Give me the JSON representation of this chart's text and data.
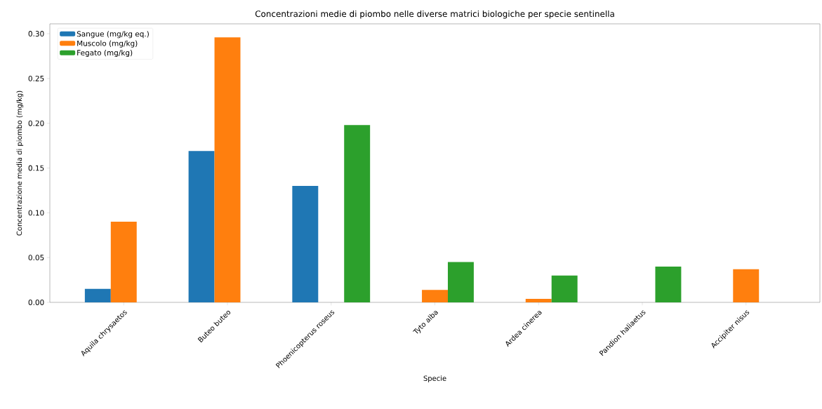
{
  "chart_data": {
    "type": "bar",
    "title": "Concentrazioni medie di piombo nelle diverse matrici biologiche per specie sentinella",
    "xlabel": "Specie",
    "ylabel": "Concentrazione media di piombo (mg/kg)",
    "categories": [
      "Aquila chrysaetos",
      "Buteo buteo",
      "Phoenicopterus roseus",
      "Tyto alba",
      "Ardea cinerea",
      "Pandion haliaetus",
      "Accipiter nisus"
    ],
    "series": [
      {
        "name": "Sangue (mg/kg eq.)",
        "color": "#1f77b4",
        "values": [
          0.015,
          0.169,
          0.13,
          null,
          null,
          null,
          null
        ]
      },
      {
        "name": "Muscolo (mg/kg)",
        "color": "#ff7f0e",
        "values": [
          0.09,
          0.296,
          null,
          0.014,
          0.004,
          null,
          0.037
        ]
      },
      {
        "name": "Fegato (mg/kg)",
        "color": "#2ca02c",
        "values": [
          null,
          null,
          0.198,
          0.045,
          0.03,
          0.04,
          null
        ]
      }
    ],
    "ylim": [
      0,
      0.311
    ],
    "yticks": [
      {
        "value": 0,
        "label": "0.00"
      },
      {
        "value": 0.05,
        "label": "0.05"
      },
      {
        "value": 0.1,
        "label": "0.10"
      },
      {
        "value": 0.15,
        "label": "0.15"
      },
      {
        "value": 0.2,
        "label": "0.20"
      },
      {
        "value": 0.25,
        "label": "0.25"
      },
      {
        "value": 0.3,
        "label": "0.30"
      }
    ],
    "legend": "top left"
  }
}
